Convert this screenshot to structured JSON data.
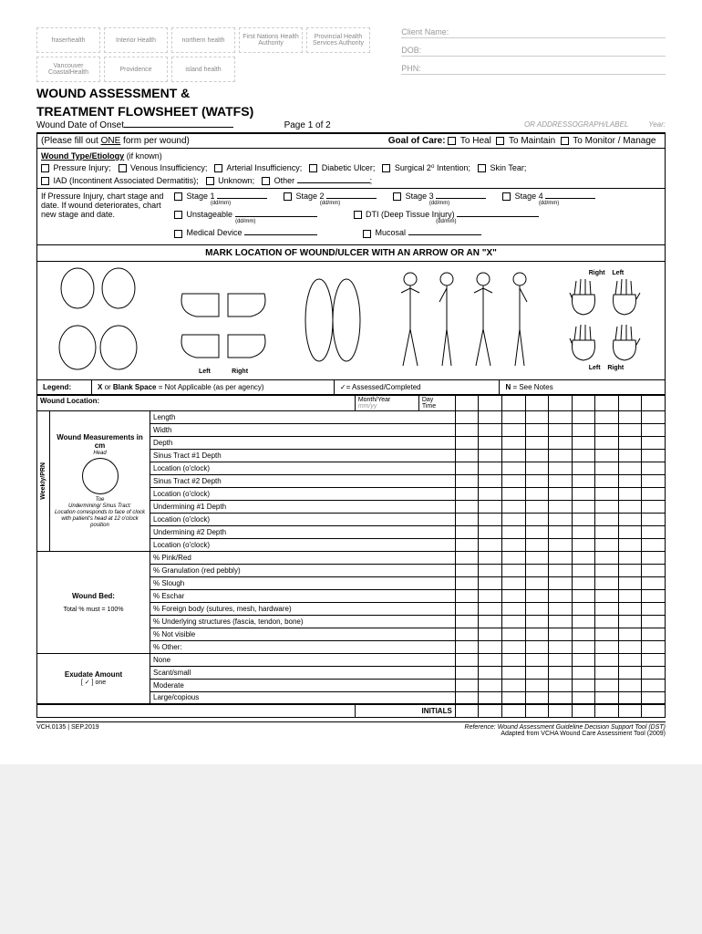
{
  "logos": [
    "fraserhealth",
    "Interior Health",
    "northern health",
    "First Nations Health Authority",
    "Provincial Health Services Authority",
    "Vancouver CoastalHealth",
    "Providence",
    "island health"
  ],
  "client": {
    "name_lbl": "Client Name:",
    "dob_lbl": "DOB:",
    "phn_lbl": "PHN:"
  },
  "title1": "WOUND ASSESSMENT &",
  "title2": "TREATMENT FLOWSHEET (WATFS)",
  "onset_lbl": "Wound Date of Onset",
  "page_lbl": "Page 1 of 2",
  "addr_lbl": "OR ADDRESSOGRAPH/LABEL",
  "year_lbl": "Year:",
  "fillout": "(Please fill out ONE form per wound)",
  "goal_lbl": "Goal of Care:",
  "goals": [
    "To Heal",
    "To Maintain",
    "To Monitor / Manage"
  ],
  "wt_title": "Wound Type/Etiology",
  "wt_known": "(if known)",
  "etio": [
    "Pressure Injury;",
    "Venous Insufficiency;",
    "Arterial Insufficiency;",
    "Diabetic Ulcer;",
    "Surgical 2⁰ Intention;",
    "Skin Tear;"
  ],
  "etio2": [
    "IAD (Incontinent Associated Dermatitis);",
    "Unknown;",
    "Other"
  ],
  "pi_text": "If Pressure Injury, chart stage and date. If wound deteriorates, chart new stage and date.",
  "stages": [
    "Stage 1",
    "Stage 2",
    "Stage 3",
    "Stage 4"
  ],
  "stage_row2": [
    "Unstageable",
    "DTI (Deep Tissue Injury)"
  ],
  "stage_row3": [
    "Medical Device",
    "Mucosal"
  ],
  "ddmm": "(dd/mm)",
  "mark_title": "MARK LOCATION OF WOUND/ULCER WITH AN ARROW OR AN \"X\"",
  "body_lbls": {
    "left": "Left",
    "right": "Right"
  },
  "legend": {
    "lbl": "Legend:",
    "x": "X or Blank Space = Not Applicable (as per agency)",
    "check": "✓= Assessed/Completed",
    "n": "N = See Notes"
  },
  "loc_header": {
    "wl": "Wound Location:",
    "my": "Month/Year",
    "myh": "mm/yy",
    "day": "Day",
    "time": "Time"
  },
  "weekly": "Weekly/PRN",
  "meas": {
    "title": "Wound Measurements in cm",
    "head": "Head",
    "toe": "Toe",
    "under": "Undermining/ Sinus Tract:",
    "loc": "Location corresponds to face of clock with patient's head at 12 o'clock position"
  },
  "meas_rows": [
    "Length",
    "Width",
    "Depth",
    "Sinus Tract #1 Depth",
    "Location (o'clock)",
    "Sinus Tract #2 Depth",
    "Location (o'clock)",
    "Undermining #1 Depth",
    "Location (o'clock)",
    "Undermining #2 Depth",
    "Location (o'clock)"
  ],
  "bed": {
    "title": "Wound Bed:",
    "note": "Total % must = 100%"
  },
  "bed_rows": [
    "% Pink/Red",
    "% Granulation (red pebbly)",
    "% Slough",
    "% Eschar",
    "% Foreign body (sutures, mesh, hardware)",
    "% Underlying structures (fascia, tendon, bone)",
    "% Not visible",
    "% Other:"
  ],
  "exu": {
    "title": "Exudate Amount",
    "note": "[ ✓ ] one"
  },
  "exu_rows": [
    "None",
    "Scant/small",
    "Moderate",
    "Large/copious"
  ],
  "initials": "INITIALS",
  "footer": {
    "left": "VCH.0135 | SEP.2019",
    "right1": "Reference:  Wound Assessment Guideline Decision Support Tool (DST)",
    "right2": "Adapted from VCHA Wound Care Assessment Tool (2009)"
  },
  "cols": 9
}
